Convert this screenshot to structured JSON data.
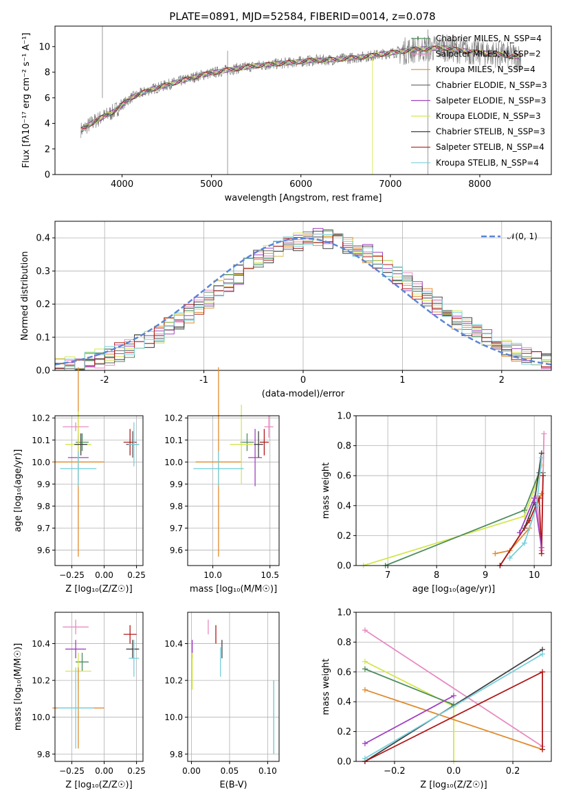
{
  "figure_title": "PLATE=0891, MJD=52584, FIBERID=0014, z=0.078",
  "colors": {
    "chabrier_miles": "#4c8c5c",
    "salpeter_miles": "#e88ac0",
    "kroupa_miles": "#e08a2c",
    "chabrier_elodie": "#606060",
    "salpeter_elodie": "#a040c0",
    "kroupa_elodie": "#d4e64c",
    "chabrier_stelib": "#404040",
    "salpeter_stelib": "#b01818",
    "kroupa_stelib": "#76d0dc",
    "normal": "#5a86d4",
    "data_spectrum": "#808080"
  },
  "chart_data": [
    {
      "type": "line",
      "title": "PLATE=0891, MJD=52584, FIBERID=0014, z=0.078",
      "xlabel": "wavelength [Angstrom, rest frame]",
      "ylabel": "Flux [fλ10⁻¹⁷ erg cm⁻² s⁻¹ A⁻¹]",
      "xlim": [
        3250,
        8800
      ],
      "ylim": [
        0,
        11.6
      ],
      "xticks": [
        4000,
        5000,
        6000,
        7000,
        8000
      ],
      "yticks": [
        0,
        2,
        4,
        6,
        8,
        10
      ],
      "grid": false,
      "legend_position": "top-right",
      "x": [
        3550,
        3700,
        3900,
        4100,
        4300,
        4600,
        4900,
        5200,
        5500,
        5800,
        6100,
        6400,
        6700,
        7000,
        7300,
        7600,
        7900,
        8200,
        8450
      ],
      "series": [
        {
          "name": "Chabrier MILES, N_SSP=4",
          "key": "chabrier_miles",
          "values": [
            3.5,
            4.2,
            4.9,
            6.0,
            6.6,
            7.2,
            7.8,
            8.2,
            8.5,
            8.7,
            8.9,
            9.0,
            9.2,
            9.5,
            9.8,
            9.9,
            9.6,
            9.4,
            9.2
          ]
        },
        {
          "name": "Salpeter MILES, N_SSP=2",
          "key": "salpeter_miles",
          "values": [
            3.5,
            4.2,
            4.9,
            6.0,
            6.6,
            7.2,
            7.8,
            8.2,
            8.5,
            8.7,
            8.9,
            9.0,
            9.2,
            9.5,
            9.8,
            9.9,
            9.6,
            9.4,
            9.2
          ]
        },
        {
          "name": "Kroupa MILES, N_SSP=4",
          "key": "kroupa_miles",
          "values": [
            3.5,
            4.2,
            4.9,
            6.0,
            6.6,
            7.2,
            7.8,
            8.2,
            8.5,
            8.7,
            8.9,
            9.0,
            9.2,
            9.5,
            9.8,
            9.9,
            9.6,
            9.4,
            9.2
          ]
        },
        {
          "name": "Chabrier ELODIE, N_SSP=3",
          "key": "chabrier_elodie",
          "values": [
            3.5,
            4.2,
            4.9,
            6.0,
            6.6,
            7.2,
            7.8,
            8.2,
            8.5,
            8.7,
            8.9,
            9.0,
            9.2,
            9.5,
            9.8,
            9.9,
            9.6,
            9.4,
            9.2
          ]
        },
        {
          "name": "Salpeter ELODIE, N_SSP=3",
          "key": "salpeter_elodie",
          "values": [
            3.5,
            4.2,
            4.9,
            6.0,
            6.6,
            7.2,
            7.8,
            8.2,
            8.5,
            8.7,
            8.9,
            9.0,
            9.2,
            9.5,
            9.8,
            9.9,
            9.6,
            9.4,
            9.2
          ]
        },
        {
          "name": "Kroupa ELODIE, N_SSP=3",
          "key": "kroupa_elodie",
          "values": [
            3.5,
            4.2,
            4.9,
            6.0,
            6.6,
            7.2,
            7.8,
            8.2,
            8.5,
            8.7,
            8.9,
            9.0,
            9.2,
            9.5,
            9.8,
            9.9,
            9.6,
            9.4,
            9.2
          ]
        },
        {
          "name": "Chabrier STELIB, N_SSP=3",
          "key": "chabrier_stelib",
          "values": [
            3.5,
            4.2,
            4.9,
            6.0,
            6.6,
            7.2,
            7.8,
            8.2,
            8.5,
            8.7,
            8.9,
            9.0,
            9.2,
            9.5,
            9.8,
            9.9,
            9.6,
            9.4,
            9.2
          ]
        },
        {
          "name": "Salpeter STELIB, N_SSP=4",
          "key": "salpeter_stelib",
          "values": [
            3.5,
            4.2,
            4.9,
            6.0,
            6.6,
            7.2,
            7.8,
            8.2,
            8.5,
            8.7,
            8.9,
            9.0,
            9.2,
            9.5,
            9.8,
            9.9,
            9.6,
            9.4,
            9.2
          ]
        },
        {
          "name": "Kroupa STELIB, N_SSP=4",
          "key": "kroupa_stelib",
          "values": [
            3.5,
            4.2,
            4.9,
            6.0,
            6.6,
            7.2,
            7.8,
            8.2,
            8.5,
            8.7,
            8.9,
            9.0,
            9.2,
            9.5,
            9.8,
            9.9,
            9.6,
            9.4,
            9.2
          ]
        }
      ]
    },
    {
      "type": "area",
      "xlabel": "(data-model)/error",
      "ylabel": "Normed distribution",
      "xlim": [
        -2.5,
        2.5
      ],
      "ylim": [
        0,
        0.45
      ],
      "xticks": [
        -2,
        -1,
        0,
        1,
        2
      ],
      "yticks": [
        0.0,
        0.1,
        0.2,
        0.3,
        0.4
      ],
      "grid": true,
      "legend_position": "top-right",
      "legend": [
        "𝒩(0, 1)"
      ],
      "histogram_bin_width": 0.1,
      "histogram_series": [
        "chabrier_miles",
        "salpeter_miles",
        "kroupa_miles",
        "chabrier_elodie",
        "salpeter_elodie",
        "kroupa_elodie",
        "chabrier_stelib",
        "salpeter_stelib",
        "kroupa_stelib"
      ]
    },
    {
      "type": "scatter",
      "xlabel": "Z [log₁₀(Z/Z☉)]",
      "ylabel": "age  [log₁₀(age/yr)]",
      "xlim": [
        -0.38,
        0.3
      ],
      "ylim": [
        9.53,
        10.21
      ],
      "xticks": [
        -0.25,
        0.0,
        0.25
      ],
      "xticklabels": [
        "−0.25",
        "0.00",
        "0.25"
      ],
      "yticks": [
        9.6,
        9.7,
        9.8,
        9.9,
        10.0,
        10.1,
        10.2
      ],
      "grid": true,
      "points": [
        {
          "series": "salpeter_miles",
          "x": -0.22,
          "y": 10.16,
          "xerr": 0.1,
          "yerr": 0.02
        },
        {
          "series": "kroupa_miles",
          "x": -0.2,
          "y": 10.0,
          "xerr": 0.2,
          "yerr": 0.43
        },
        {
          "series": "chabrier_miles",
          "x": -0.17,
          "y": 10.09,
          "xerr": 0.05,
          "yerr": 0.04
        },
        {
          "series": "salpeter_elodie",
          "x": -0.2,
          "y": 10.02,
          "xerr": 0.08,
          "yerr": 0.1
        },
        {
          "series": "kroupa_elodie",
          "x": -0.2,
          "y": 10.08,
          "xerr": 0.1,
          "yerr": 0.15
        },
        {
          "series": "chabrier_stelib",
          "x": -0.18,
          "y": 10.08,
          "xerr": 0.05,
          "yerr": 0.05
        },
        {
          "series": "kroupa_stelib",
          "x": -0.2,
          "y": 9.97,
          "xerr": 0.14,
          "yerr": 0.08
        },
        {
          "series": "salpeter_stelib",
          "x": 0.2,
          "y": 10.09,
          "xerr": 0.05,
          "yerr": 0.06
        },
        {
          "series": "chabrier_elodie",
          "x": 0.22,
          "y": 10.08,
          "xerr": 0.05,
          "yerr": 0.06
        },
        {
          "series": "kroupa_stelib",
          "x": 0.23,
          "y": 10.08,
          "xerr": 0.04,
          "yerr": 0.1
        }
      ]
    },
    {
      "type": "scatter",
      "xlabel": "mass [log₁₀(M/M☉)]",
      "xlim": [
        9.78,
        10.58
      ],
      "ylim": [
        9.53,
        10.21
      ],
      "xticks": [
        10.0,
        10.5
      ],
      "yticks": [
        9.6,
        9.7,
        9.8,
        9.9,
        10.0,
        10.1,
        10.2
      ],
      "grid": true,
      "points": [
        {
          "series": "salpeter_miles",
          "x": 10.49,
          "y": 10.16,
          "xerr": 0.04,
          "yerr": 0.05
        },
        {
          "series": "kroupa_miles",
          "x": 10.05,
          "y": 10.0,
          "xerr": 0.2,
          "yerr": 0.43
        },
        {
          "series": "chabrier_miles",
          "x": 10.3,
          "y": 10.09,
          "xerr": 0.06,
          "yerr": 0.04
        },
        {
          "series": "salpeter_elodie",
          "x": 10.37,
          "y": 10.02,
          "xerr": 0.06,
          "yerr": 0.13
        },
        {
          "series": "kroupa_elodie",
          "x": 10.25,
          "y": 10.08,
          "xerr": 0.1,
          "yerr": 0.18
        },
        {
          "series": "chabrier_stelib",
          "x": 10.4,
          "y": 10.08,
          "xerr": 0.04,
          "yerr": 0.06
        },
        {
          "series": "kroupa_stelib",
          "x": 10.05,
          "y": 9.97,
          "xerr": 0.22,
          "yerr": 0.08
        },
        {
          "series": "salpeter_stelib",
          "x": 10.45,
          "y": 10.09,
          "xerr": 0.04,
          "yerr": 0.06
        }
      ]
    },
    {
      "type": "line",
      "xlabel": "age  [log₁₀(age/yr)]",
      "ylabel": "mass weight",
      "xlim": [
        6.35,
        10.35
      ],
      "ylim": [
        0,
        1
      ],
      "xticks": [
        7,
        8,
        9,
        10
      ],
      "yticks": [
        0.0,
        0.2,
        0.4,
        0.6,
        0.8,
        1.0
      ],
      "grid": true,
      "lines": [
        {
          "series": "kroupa_elodie",
          "x": [
            6.5,
            9.8,
            10.1,
            10.15
          ],
          "y": [
            0.0,
            0.33,
            0.6,
            0.67
          ]
        },
        {
          "series": "chabrier_miles",
          "x": [
            6.95,
            9.8,
            10.1,
            10.18
          ],
          "y": [
            0.0,
            0.37,
            0.62,
            0.62
          ]
        },
        {
          "series": "kroupa_miles",
          "x": [
            9.2,
            9.5,
            9.9,
            10.05,
            10.15
          ],
          "y": [
            0.08,
            0.1,
            0.25,
            0.4,
            0.48
          ]
        },
        {
          "series": "salpeter_miles",
          "x": [
            10.05,
            10.15,
            10.2
          ],
          "y": [
            0.45,
            0.1,
            0.88
          ]
        },
        {
          "series": "chabrier_stelib",
          "x": [
            9.3,
            9.8,
            10.0,
            10.15
          ],
          "y": [
            0.0,
            0.25,
            0.42,
            0.75
          ]
        },
        {
          "series": "salpeter_stelib",
          "x": [
            9.3,
            9.9,
            10.1,
            10.15,
            10.18
          ],
          "y": [
            0.0,
            0.3,
            0.45,
            0.08,
            0.6
          ]
        },
        {
          "series": "kroupa_stelib",
          "x": [
            9.5,
            9.8,
            10.05,
            10.15
          ],
          "y": [
            0.05,
            0.15,
            0.4,
            0.72
          ]
        },
        {
          "series": "salpeter_elodie",
          "x": [
            9.7,
            10.0,
            10.15
          ],
          "y": [
            0.22,
            0.45,
            0.12
          ]
        }
      ]
    },
    {
      "type": "scatter",
      "xlabel": "Z [log₁₀(Z/Z☉)]",
      "ylabel": "mass [log₁₀(M/M☉)]",
      "xlim": [
        -0.38,
        0.3
      ],
      "ylim": [
        9.76,
        10.57
      ],
      "xticks": [
        -0.25,
        0.0,
        0.25
      ],
      "xticklabels": [
        "−0.25",
        "0.00",
        "0.25"
      ],
      "yticks": [
        9.8,
        10.0,
        10.2,
        10.4
      ],
      "grid": true,
      "points": [
        {
          "series": "salpeter_miles",
          "x": -0.22,
          "y": 10.49,
          "xerr": 0.1,
          "yerr": 0.04
        },
        {
          "series": "salpeter_elodie",
          "x": -0.22,
          "y": 10.37,
          "xerr": 0.08,
          "yerr": 0.05
        },
        {
          "series": "chabrier_miles",
          "x": -0.17,
          "y": 10.3,
          "xerr": 0.05,
          "yerr": 0.05
        },
        {
          "series": "kroupa_elodie",
          "x": -0.2,
          "y": 10.25,
          "xerr": 0.1,
          "yerr": 0.1
        },
        {
          "series": "kroupa_miles",
          "x": -0.2,
          "y": 10.05,
          "xerr": 0.2,
          "yerr": 0.22
        },
        {
          "series": "kroupa_stelib",
          "x": -0.22,
          "y": 10.05,
          "xerr": 0.14,
          "yerr": 0.22
        },
        {
          "series": "salpeter_stelib",
          "x": 0.2,
          "y": 10.45,
          "xerr": 0.05,
          "yerr": 0.05
        },
        {
          "series": "chabrier_stelib",
          "x": 0.22,
          "y": 10.37,
          "xerr": 0.05,
          "yerr": 0.05
        },
        {
          "series": "kroupa_stelib",
          "x": 0.23,
          "y": 10.32,
          "xerr": 0.04,
          "yerr": 0.1
        }
      ]
    },
    {
      "type": "scatter",
      "xlabel": "E(B-V)",
      "xlim": [
        -0.005,
        0.115
      ],
      "ylim": [
        9.76,
        10.57
      ],
      "xticks": [
        0.0,
        0.05,
        0.1
      ],
      "xticklabels": [
        "0.00",
        "0.05",
        "0.10"
      ],
      "yticks": [
        9.8,
        10.0,
        10.2,
        10.4
      ],
      "grid": true,
      "points": [
        {
          "series": "salpeter_miles",
          "x": 0.022,
          "y": 10.49,
          "yerr": 0.04
        },
        {
          "series": "salpeter_stelib",
          "x": 0.032,
          "y": 10.45,
          "yerr": 0.05
        },
        {
          "series": "chabrier_stelib",
          "x": 0.04,
          "y": 10.37,
          "yerr": 0.05
        },
        {
          "series": "kroupa_stelib",
          "x": 0.038,
          "y": 10.3,
          "yerr": 0.08
        },
        {
          "series": "salpeter_elodie",
          "x": 0.001,
          "y": 10.37,
          "yerr": 0.05
        },
        {
          "series": "kroupa_elodie",
          "x": 0.001,
          "y": 10.25,
          "yerr": 0.1
        },
        {
          "series": "kroupa_miles",
          "x": 0.108,
          "y": 10.0,
          "yerr": 0.2
        },
        {
          "series": "kroupa_stelib",
          "x": 0.108,
          "y": 10.0,
          "yerr": 0.2
        }
      ]
    },
    {
      "type": "line",
      "xlabel": "Z [log₁₀(Z/Z☉)]",
      "ylabel": "mass weight",
      "xlim": [
        -0.33,
        0.33
      ],
      "ylim": [
        0,
        1
      ],
      "xticks": [
        -0.2,
        0.0,
        0.2
      ],
      "xticklabels": [
        "−0.2",
        "0.0",
        "0.2"
      ],
      "yticks": [
        0.0,
        0.2,
        0.4,
        0.6,
        0.8,
        1.0
      ],
      "grid": true,
      "lines": [
        {
          "series": "salpeter_miles",
          "x": [
            -0.3,
            0.3
          ],
          "y": [
            0.88,
            0.1
          ]
        },
        {
          "series": "kroupa_elodie",
          "x": [
            -0.3,
            0.0,
            0.0
          ],
          "y": [
            0.67,
            0.37,
            0.0
          ]
        },
        {
          "series": "chabrier_miles",
          "x": [
            -0.3,
            0.0
          ],
          "y": [
            0.62,
            0.38
          ]
        },
        {
          "series": "kroupa_miles",
          "x": [
            -0.3,
            0.3
          ],
          "y": [
            0.48,
            0.08
          ]
        },
        {
          "series": "salpeter_elodie",
          "x": [
            -0.3,
            0.0
          ],
          "y": [
            0.12,
            0.44
          ]
        },
        {
          "series": "chabrier_stelib",
          "x": [
            -0.3,
            0.3
          ],
          "y": [
            0.0,
            0.75
          ]
        },
        {
          "series": "salpeter_stelib",
          "x": [
            -0.3,
            0.3,
            0.3
          ],
          "y": [
            0.0,
            0.6,
            0.08
          ]
        },
        {
          "series": "kroupa_stelib",
          "x": [
            -0.3,
            0.3
          ],
          "y": [
            0.02,
            0.72
          ]
        }
      ]
    }
  ]
}
